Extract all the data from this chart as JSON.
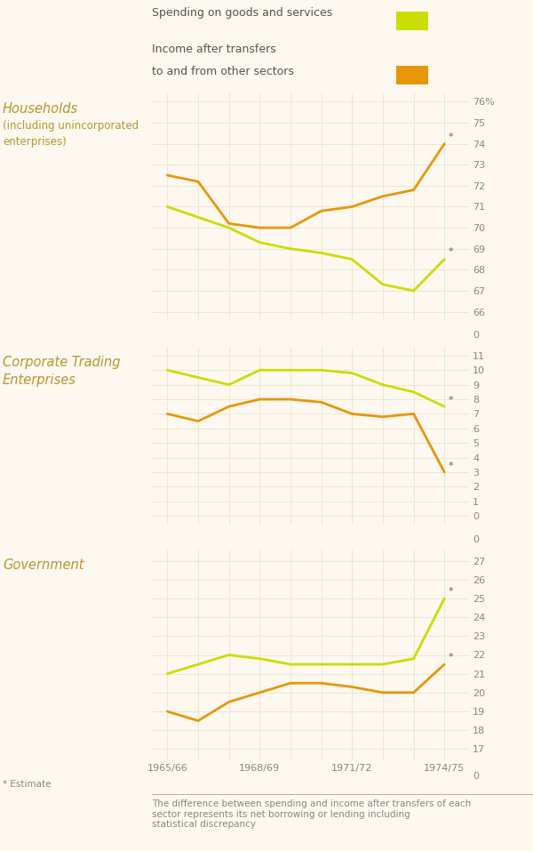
{
  "background_color": "#fdf8f0",
  "grid_color": "#ede8d0",
  "line_green": "#ccdd00",
  "line_orange": "#e8960a",
  "text_color_label": "#b8962e",
  "text_color_tick": "#888880",
  "x_positions": [
    0,
    1,
    2,
    3,
    4,
    5,
    6,
    7,
    8,
    9
  ],
  "x_tick_positions_show": [
    0,
    3,
    6,
    9
  ],
  "x_tick_labels_show": [
    "1965/66",
    "1968/69",
    "1971/72",
    "1974/75"
  ],
  "households": {
    "label_line1": "Households",
    "label_line2": "(including unincorporated",
    "label_line3": "enterprises)",
    "ylim": [
      65.6,
      76.4
    ],
    "ytick_vals": [
      66,
      67,
      68,
      69,
      70,
      71,
      72,
      73,
      74,
      75,
      76
    ],
    "ytick_labels": [
      "66",
      "67",
      "68",
      "69",
      "70",
      "71",
      "72",
      "73",
      "74",
      "75",
      "76%"
    ],
    "spending": [
      71.0,
      70.5,
      70.0,
      69.3,
      69.0,
      68.8,
      68.5,
      67.3,
      67.0,
      68.5
    ],
    "income": [
      72.5,
      72.2,
      70.2,
      70.0,
      70.0,
      70.8,
      71.0,
      71.5,
      71.8,
      74.0
    ]
  },
  "corporate": {
    "label_line1": "Corporate Trading",
    "label_line2": "Enterprises",
    "ylim": [
      -0.6,
      11.6
    ],
    "ytick_vals": [
      0,
      1,
      2,
      3,
      4,
      5,
      6,
      7,
      8,
      9,
      10,
      11
    ],
    "ytick_labels": [
      "0",
      "1",
      "2",
      "3",
      "4",
      "5",
      "6",
      "7",
      "8",
      "9",
      "10",
      "11"
    ],
    "spending": [
      10.0,
      9.5,
      9.0,
      10.0,
      10.0,
      10.0,
      9.8,
      9.0,
      8.5,
      7.5
    ],
    "income": [
      7.0,
      6.5,
      7.5,
      8.0,
      8.0,
      7.8,
      7.0,
      6.8,
      7.0,
      3.0
    ]
  },
  "government": {
    "label_line1": "Government",
    "ylim": [
      16.4,
      27.6
    ],
    "ytick_vals": [
      17,
      18,
      19,
      20,
      21,
      22,
      23,
      24,
      25,
      26,
      27
    ],
    "ytick_labels": [
      "17",
      "18",
      "19",
      "20",
      "21",
      "22",
      "23",
      "24",
      "25",
      "26",
      "27"
    ],
    "spending": [
      21.0,
      21.5,
      22.0,
      21.8,
      21.5,
      21.5,
      21.5,
      21.5,
      21.8,
      25.0
    ],
    "income": [
      19.0,
      18.5,
      19.5,
      20.0,
      20.5,
      20.5,
      20.3,
      20.0,
      20.0,
      21.5
    ]
  },
  "legend_spending": "Spending on goods and services",
  "legend_income_line1": "Income after transfers",
  "legend_income_line2": "to and from other sectors",
  "footnote_star": "* Estimate",
  "footnote_text": "The difference between spending and income after transfers of each\nsector represents its net borrowing or lending including\nstatistical discrepancy"
}
